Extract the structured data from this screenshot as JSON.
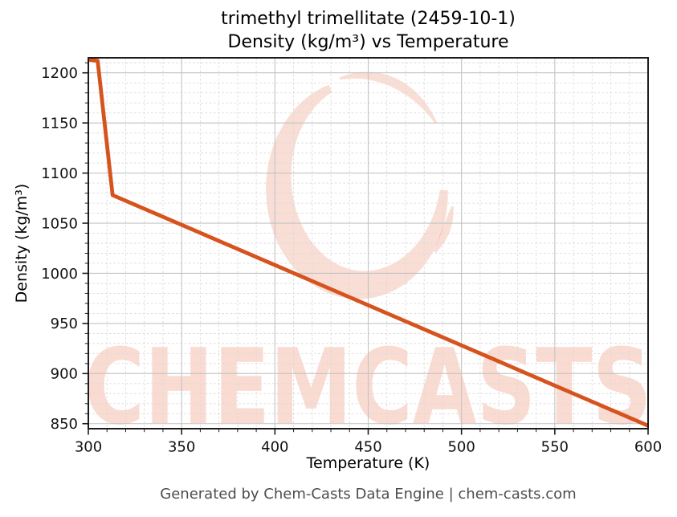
{
  "figure": {
    "footer": "Generated by Chem-Casts Data Engine | chem-casts.com"
  },
  "watermark": {
    "text": "CHEMCASTS",
    "color": "#e25b2e",
    "text_opacity": 0.22,
    "logo_opacity": 0.2
  },
  "chart_data": {
    "type": "line",
    "title_lines": [
      "trimethyl trimellitate (2459-10-1)",
      "Density (kg/m³) vs Temperature"
    ],
    "xlabel": "Temperature (K)",
    "ylabel": "Density (kg/m³)",
    "xlim": [
      300,
      600
    ],
    "ylim": [
      845,
      1215
    ],
    "xticks": [
      300,
      350,
      400,
      450,
      500,
      550,
      600
    ],
    "yticks": [
      850,
      900,
      950,
      1000,
      1050,
      1100,
      1150,
      1200
    ],
    "minor_tick_step": 10,
    "grid": {
      "major": "solid",
      "minor": "dashed"
    },
    "legend": "none",
    "series": [
      {
        "name": "density",
        "color": "#d6531e",
        "points": [
          [
            300,
            1213
          ],
          [
            305,
            1212
          ],
          [
            313,
            1078
          ],
          [
            600,
            848
          ]
        ]
      }
    ]
  }
}
